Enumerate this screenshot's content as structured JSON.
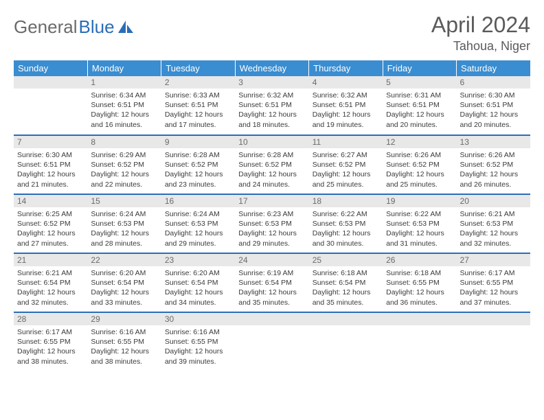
{
  "brand": {
    "part1": "General",
    "part2": "Blue"
  },
  "title": "April 2024",
  "location": "Tahoua, Niger",
  "colors": {
    "header_bg": "#3a8dd0",
    "row_border": "#2a6db8",
    "daynum_bg": "#e8e8e8",
    "text": "#3a3a3a",
    "title_text": "#5a5a5a"
  },
  "weekdays": [
    "Sunday",
    "Monday",
    "Tuesday",
    "Wednesday",
    "Thursday",
    "Friday",
    "Saturday"
  ],
  "weeks": [
    [
      {
        "n": "",
        "sr": "",
        "ss": "",
        "dl": ""
      },
      {
        "n": "1",
        "sr": "Sunrise: 6:34 AM",
        "ss": "Sunset: 6:51 PM",
        "dl": "Daylight: 12 hours and 16 minutes."
      },
      {
        "n": "2",
        "sr": "Sunrise: 6:33 AM",
        "ss": "Sunset: 6:51 PM",
        "dl": "Daylight: 12 hours and 17 minutes."
      },
      {
        "n": "3",
        "sr": "Sunrise: 6:32 AM",
        "ss": "Sunset: 6:51 PM",
        "dl": "Daylight: 12 hours and 18 minutes."
      },
      {
        "n": "4",
        "sr": "Sunrise: 6:32 AM",
        "ss": "Sunset: 6:51 PM",
        "dl": "Daylight: 12 hours and 19 minutes."
      },
      {
        "n": "5",
        "sr": "Sunrise: 6:31 AM",
        "ss": "Sunset: 6:51 PM",
        "dl": "Daylight: 12 hours and 20 minutes."
      },
      {
        "n": "6",
        "sr": "Sunrise: 6:30 AM",
        "ss": "Sunset: 6:51 PM",
        "dl": "Daylight: 12 hours and 20 minutes."
      }
    ],
    [
      {
        "n": "7",
        "sr": "Sunrise: 6:30 AM",
        "ss": "Sunset: 6:51 PM",
        "dl": "Daylight: 12 hours and 21 minutes."
      },
      {
        "n": "8",
        "sr": "Sunrise: 6:29 AM",
        "ss": "Sunset: 6:52 PM",
        "dl": "Daylight: 12 hours and 22 minutes."
      },
      {
        "n": "9",
        "sr": "Sunrise: 6:28 AM",
        "ss": "Sunset: 6:52 PM",
        "dl": "Daylight: 12 hours and 23 minutes."
      },
      {
        "n": "10",
        "sr": "Sunrise: 6:28 AM",
        "ss": "Sunset: 6:52 PM",
        "dl": "Daylight: 12 hours and 24 minutes."
      },
      {
        "n": "11",
        "sr": "Sunrise: 6:27 AM",
        "ss": "Sunset: 6:52 PM",
        "dl": "Daylight: 12 hours and 25 minutes."
      },
      {
        "n": "12",
        "sr": "Sunrise: 6:26 AM",
        "ss": "Sunset: 6:52 PM",
        "dl": "Daylight: 12 hours and 25 minutes."
      },
      {
        "n": "13",
        "sr": "Sunrise: 6:26 AM",
        "ss": "Sunset: 6:52 PM",
        "dl": "Daylight: 12 hours and 26 minutes."
      }
    ],
    [
      {
        "n": "14",
        "sr": "Sunrise: 6:25 AM",
        "ss": "Sunset: 6:52 PM",
        "dl": "Daylight: 12 hours and 27 minutes."
      },
      {
        "n": "15",
        "sr": "Sunrise: 6:24 AM",
        "ss": "Sunset: 6:53 PM",
        "dl": "Daylight: 12 hours and 28 minutes."
      },
      {
        "n": "16",
        "sr": "Sunrise: 6:24 AM",
        "ss": "Sunset: 6:53 PM",
        "dl": "Daylight: 12 hours and 29 minutes."
      },
      {
        "n": "17",
        "sr": "Sunrise: 6:23 AM",
        "ss": "Sunset: 6:53 PM",
        "dl": "Daylight: 12 hours and 29 minutes."
      },
      {
        "n": "18",
        "sr": "Sunrise: 6:22 AM",
        "ss": "Sunset: 6:53 PM",
        "dl": "Daylight: 12 hours and 30 minutes."
      },
      {
        "n": "19",
        "sr": "Sunrise: 6:22 AM",
        "ss": "Sunset: 6:53 PM",
        "dl": "Daylight: 12 hours and 31 minutes."
      },
      {
        "n": "20",
        "sr": "Sunrise: 6:21 AM",
        "ss": "Sunset: 6:53 PM",
        "dl": "Daylight: 12 hours and 32 minutes."
      }
    ],
    [
      {
        "n": "21",
        "sr": "Sunrise: 6:21 AM",
        "ss": "Sunset: 6:54 PM",
        "dl": "Daylight: 12 hours and 32 minutes."
      },
      {
        "n": "22",
        "sr": "Sunrise: 6:20 AM",
        "ss": "Sunset: 6:54 PM",
        "dl": "Daylight: 12 hours and 33 minutes."
      },
      {
        "n": "23",
        "sr": "Sunrise: 6:20 AM",
        "ss": "Sunset: 6:54 PM",
        "dl": "Daylight: 12 hours and 34 minutes."
      },
      {
        "n": "24",
        "sr": "Sunrise: 6:19 AM",
        "ss": "Sunset: 6:54 PM",
        "dl": "Daylight: 12 hours and 35 minutes."
      },
      {
        "n": "25",
        "sr": "Sunrise: 6:18 AM",
        "ss": "Sunset: 6:54 PM",
        "dl": "Daylight: 12 hours and 35 minutes."
      },
      {
        "n": "26",
        "sr": "Sunrise: 6:18 AM",
        "ss": "Sunset: 6:55 PM",
        "dl": "Daylight: 12 hours and 36 minutes."
      },
      {
        "n": "27",
        "sr": "Sunrise: 6:17 AM",
        "ss": "Sunset: 6:55 PM",
        "dl": "Daylight: 12 hours and 37 minutes."
      }
    ],
    [
      {
        "n": "28",
        "sr": "Sunrise: 6:17 AM",
        "ss": "Sunset: 6:55 PM",
        "dl": "Daylight: 12 hours and 38 minutes."
      },
      {
        "n": "29",
        "sr": "Sunrise: 6:16 AM",
        "ss": "Sunset: 6:55 PM",
        "dl": "Daylight: 12 hours and 38 minutes."
      },
      {
        "n": "30",
        "sr": "Sunrise: 6:16 AM",
        "ss": "Sunset: 6:55 PM",
        "dl": "Daylight: 12 hours and 39 minutes."
      },
      {
        "n": "",
        "sr": "",
        "ss": "",
        "dl": ""
      },
      {
        "n": "",
        "sr": "",
        "ss": "",
        "dl": ""
      },
      {
        "n": "",
        "sr": "",
        "ss": "",
        "dl": ""
      },
      {
        "n": "",
        "sr": "",
        "ss": "",
        "dl": ""
      }
    ]
  ]
}
